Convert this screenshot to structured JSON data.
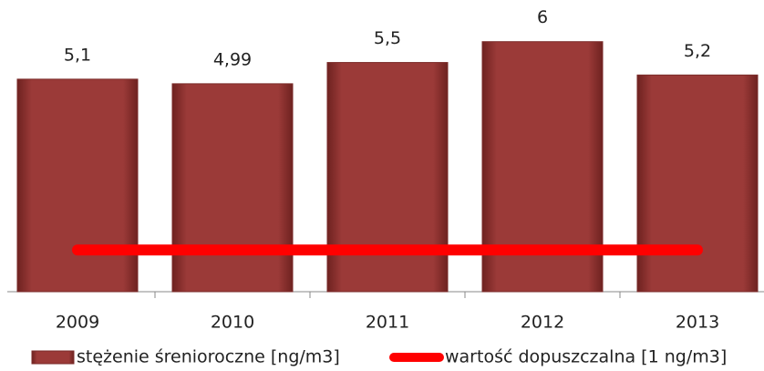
{
  "chart_data": {
    "type": "bar",
    "categories": [
      "2009",
      "2010",
      "2011",
      "2012",
      "2013"
    ],
    "series": [
      {
        "name": "stężenie śrenioroczne [ng/m3]",
        "type": "bar",
        "color": "#9b3a38",
        "values": [
          5.1,
          4.99,
          5.5,
          6,
          5.2
        ],
        "value_labels": [
          "5,1",
          "4,99",
          "5,5",
          "6",
          "5,2"
        ]
      },
      {
        "name": "wartość dopuszczalna [1 ng/m3]",
        "type": "line",
        "color": "#ff0000",
        "values": [
          1,
          1,
          1,
          1,
          1
        ]
      }
    ],
    "ylim": [
      0,
      7
    ],
    "legend": "bottom"
  }
}
